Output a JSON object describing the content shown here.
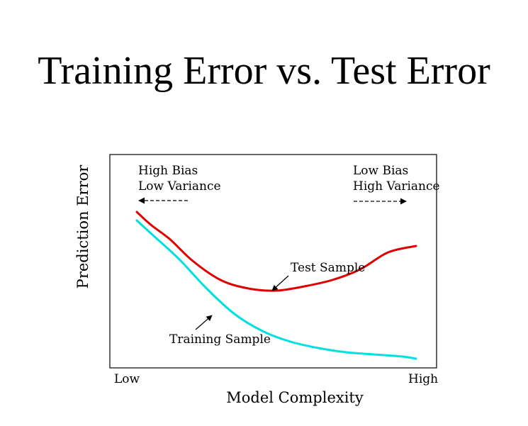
{
  "slide": {
    "title": "Training Error vs. Test Error"
  },
  "chart_data": {
    "type": "line",
    "title": "",
    "xlabel": "Model Complexity",
    "ylabel": "Prediction Error",
    "x_ticks": [
      "Low",
      "High"
    ],
    "xlim": [
      0,
      1
    ],
    "ylim": [
      0,
      1
    ],
    "grid": false,
    "series": [
      {
        "name": "Test Sample",
        "color": "#e00000",
        "x": [
          0.0,
          0.05,
          0.12,
          0.2,
          0.3,
          0.4,
          0.5,
          0.6,
          0.7,
          0.8,
          0.9,
          1.0
        ],
        "y": [
          0.72,
          0.66,
          0.59,
          0.49,
          0.4,
          0.36,
          0.35,
          0.37,
          0.4,
          0.45,
          0.53,
          0.56
        ]
      },
      {
        "name": "Training Sample",
        "color": "#00e0e0",
        "x": [
          0.0,
          0.05,
          0.15,
          0.25,
          0.35,
          0.45,
          0.55,
          0.65,
          0.75,
          0.85,
          0.95,
          1.0
        ],
        "y": [
          0.68,
          0.62,
          0.5,
          0.36,
          0.24,
          0.16,
          0.11,
          0.08,
          0.06,
          0.05,
          0.04,
          0.03
        ]
      }
    ],
    "annotations": {
      "left_line1": "High Bias",
      "left_line2": "Low Variance",
      "right_line1": "Low Bias",
      "right_line2": "High Variance"
    }
  }
}
